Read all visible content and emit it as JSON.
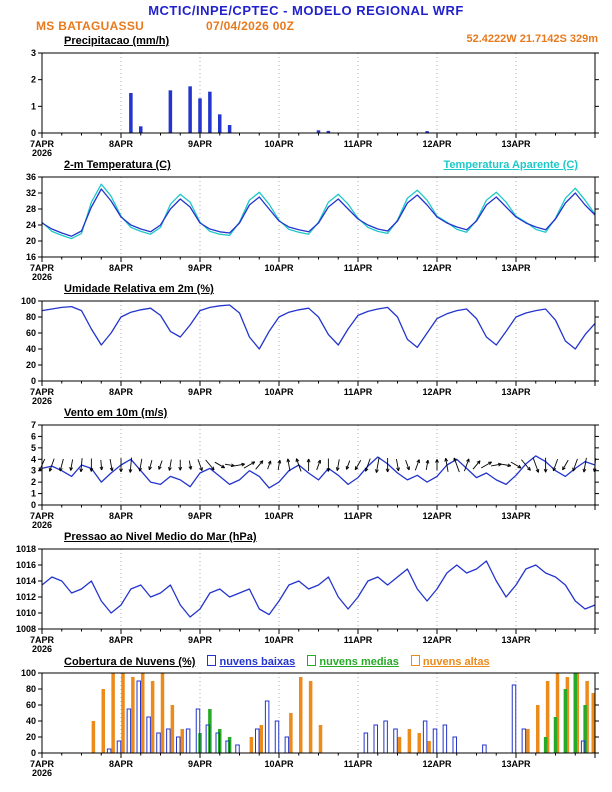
{
  "header": {
    "title": "MCTIC/INPE/CPTEC - MODELO REGIONAL WRF",
    "station": "MS BATAGUASSU",
    "run": "07/04/2026 00Z",
    "coords": "52.4222W 21.7142S 329m"
  },
  "colors": {
    "title_blue": "#2222cc",
    "accent_orange": "#e87a1e",
    "blue": "#2335cc",
    "cyan": "#1fc8c8",
    "green": "#27ab27",
    "orange": "#ec8a1c",
    "black": "#000000"
  },
  "x_axis": {
    "hours_start": 0,
    "hours_end": 168,
    "step_hours": 3,
    "day_ticks": [
      0,
      24,
      48,
      72,
      96,
      120,
      144
    ],
    "day_labels": [
      "7APR",
      "8APR",
      "9APR",
      "10APR",
      "11APR",
      "12APR",
      "13APR"
    ],
    "year_label": "2026",
    "minor_tick_hours": 6
  },
  "chart_data": [
    {
      "type": "bar",
      "title": "Precipitacao (mm/h)",
      "ylim": [
        0,
        3
      ],
      "yticks": [
        0,
        1,
        2,
        3
      ],
      "series": [
        {
          "name": "precipitacao",
          "color": "blue",
          "values": [
            0,
            0,
            0,
            0,
            0,
            0,
            0,
            0,
            0,
            1.5,
            0.25,
            0,
            0,
            1.6,
            0,
            1.75,
            1.3,
            1.55,
            0.7,
            0.3,
            0,
            0,
            0,
            0,
            0,
            0,
            0,
            0,
            0.1,
            0.08,
            0,
            0,
            0,
            0,
            0,
            0,
            0,
            0,
            0,
            0.07,
            0,
            0,
            0,
            0,
            0,
            0,
            0,
            0,
            0,
            0,
            0,
            0,
            0,
            0,
            0,
            0,
            0
          ]
        }
      ]
    },
    {
      "type": "line",
      "title": "2-m Temperatura (C)",
      "title2": "Temperatura Aparente (C)",
      "ylim": [
        16,
        36
      ],
      "yticks": [
        16,
        20,
        24,
        28,
        32,
        36
      ],
      "series": [
        {
          "name": "temperatura-aparente",
          "color": "cyan",
          "values": [
            24.7,
            22.4,
            21.4,
            20.6,
            21.9,
            29.7,
            34.2,
            31.2,
            26.2,
            23.4,
            22.4,
            21.7,
            23.4,
            29.2,
            31.7,
            29.7,
            24.7,
            22.4,
            21.7,
            21.4,
            24.7,
            30.2,
            32.2,
            29.2,
            25.2,
            22.9,
            22.2,
            21.7,
            24.7,
            29.7,
            31.7,
            29.2,
            25.7,
            23.4,
            22.4,
            21.9,
            25.2,
            30.7,
            32.7,
            30.2,
            26.2,
            24.7,
            22.9,
            22.2,
            25.2,
            30.2,
            32.2,
            29.7,
            26.2,
            24.7,
            22.9,
            22.2,
            25.7,
            30.7,
            33.2,
            30.2,
            26.7
          ]
        },
        {
          "name": "temperatura-2m",
          "color": "blue",
          "values": [
            24.5,
            23.0,
            22.0,
            21.2,
            22.5,
            28.5,
            33.0,
            30.0,
            26.0,
            24.0,
            23.0,
            22.3,
            24.0,
            28.0,
            30.5,
            28.5,
            24.5,
            23.0,
            22.3,
            22.0,
            24.5,
            29.0,
            31.0,
            28.0,
            25.0,
            23.5,
            22.8,
            22.3,
            24.5,
            28.5,
            30.5,
            28.0,
            25.5,
            24.0,
            23.0,
            22.5,
            25.0,
            29.5,
            31.5,
            29.0,
            26.0,
            24.5,
            23.5,
            22.8,
            25.0,
            29.0,
            31.0,
            28.5,
            26.0,
            24.5,
            23.5,
            22.8,
            25.5,
            29.5,
            32.0,
            29.0,
            26.5
          ]
        }
      ]
    },
    {
      "type": "line",
      "title": "Umidade Relativa em 2m (%)",
      "ylim": [
        0,
        100
      ],
      "yticks": [
        0,
        20,
        40,
        60,
        80,
        100
      ],
      "series": [
        {
          "name": "umidade-relativa",
          "color": "blue",
          "values": [
            88,
            90,
            92,
            93,
            88,
            65,
            45,
            60,
            80,
            86,
            89,
            91,
            82,
            62,
            55,
            70,
            88,
            92,
            94,
            95,
            85,
            55,
            40,
            62,
            80,
            86,
            89,
            91,
            80,
            58,
            45,
            65,
            82,
            87,
            90,
            92,
            80,
            52,
            42,
            60,
            78,
            84,
            88,
            90,
            78,
            55,
            45,
            62,
            80,
            85,
            88,
            90,
            76,
            50,
            40,
            58,
            72
          ]
        }
      ]
    },
    {
      "type": "wind",
      "title": "Vento em 10m (m/s)",
      "ylim": [
        0,
        7
      ],
      "yticks": [
        0,
        1,
        2,
        3,
        4,
        5,
        6,
        7
      ],
      "arrow_level": 3.5,
      "directions": [
        205,
        200,
        195,
        190,
        185,
        180,
        175,
        170,
        180,
        185,
        190,
        195,
        200,
        190,
        180,
        170,
        160,
        140,
        120,
        100,
        80,
        60,
        40,
        20,
        10,
        350,
        340,
        0,
        20,
        180,
        190,
        200,
        210,
        200,
        190,
        180,
        170,
        160,
        20,
        10,
        0,
        350,
        340,
        20,
        40,
        60,
        80,
        100,
        120,
        140,
        160,
        180,
        200,
        210,
        200,
        190,
        185
      ],
      "series": [
        {
          "name": "velocidade-vento",
          "color": "blue",
          "values": [
            3.2,
            3.4,
            3.0,
            2.5,
            3.5,
            3.2,
            2.0,
            2.8,
            3.5,
            4.0,
            3.0,
            2.0,
            1.8,
            2.5,
            2.2,
            1.6,
            2.8,
            3.2,
            2.5,
            1.8,
            2.2,
            3.0,
            2.5,
            1.5,
            2.0,
            3.0,
            3.5,
            2.8,
            2.2,
            3.2,
            2.6,
            1.8,
            2.4,
            3.4,
            4.2,
            3.6,
            2.8,
            2.2,
            2.6,
            2.0,
            2.5,
            3.5,
            4.0,
            3.2,
            2.4,
            2.8,
            2.2,
            1.8,
            2.6,
            3.6,
            4.3,
            3.8,
            3.0,
            2.5,
            3.2,
            3.8,
            3.5
          ]
        }
      ]
    },
    {
      "type": "line",
      "title": "Pressao ao Nivel Medio do Mar (hPa)",
      "ylim": [
        1008,
        1018
      ],
      "yticks": [
        1008,
        1010,
        1012,
        1014,
        1016,
        1018
      ],
      "series": [
        {
          "name": "pressao-nivel-mar",
          "color": "blue",
          "values": [
            1013.5,
            1014.5,
            1014.0,
            1012.5,
            1013.0,
            1014.0,
            1011.5,
            1010.0,
            1011.0,
            1013.0,
            1013.5,
            1012.0,
            1012.5,
            1013.5,
            1011.0,
            1009.5,
            1010.5,
            1012.5,
            1013.0,
            1012.0,
            1012.5,
            1013.0,
            1010.5,
            1009.8,
            1011.5,
            1013.5,
            1014.0,
            1013.0,
            1013.5,
            1014.5,
            1012.0,
            1010.5,
            1012.0,
            1014.0,
            1014.5,
            1013.5,
            1014.5,
            1015.5,
            1013.0,
            1011.5,
            1013.0,
            1015.0,
            1016.0,
            1015.0,
            1015.5,
            1016.5,
            1014.0,
            1012.0,
            1013.5,
            1015.5,
            1016.0,
            1015.0,
            1014.5,
            1013.5,
            1011.5,
            1010.5,
            1011.0
          ]
        }
      ]
    },
    {
      "type": "clouds",
      "title": "Cobertura de Nuvens (%)",
      "ylim": [
        0,
        100
      ],
      "yticks": [
        0,
        20,
        40,
        60,
        80,
        100
      ],
      "legend": [
        {
          "label": "nuvens baixas",
          "color": "blue"
        },
        {
          "label": "nuvens medias",
          "color": "green"
        },
        {
          "label": "nuvens altas",
          "color": "orange"
        }
      ],
      "series": [
        {
          "name": "nuvens-altas",
          "color": "orange",
          "style": "solid",
          "offset": 2,
          "values": [
            0,
            0,
            0,
            0,
            0,
            40,
            80,
            100,
            100,
            95,
            100,
            90,
            100,
            60,
            30,
            0,
            0,
            0,
            0,
            0,
            0,
            20,
            35,
            0,
            0,
            50,
            95,
            90,
            35,
            0,
            0,
            0,
            0,
            0,
            0,
            0,
            20,
            30,
            25,
            15,
            0,
            0,
            0,
            0,
            0,
            0,
            0,
            0,
            0,
            30,
            60,
            90,
            100,
            95,
            100,
            90,
            75
          ]
        },
        {
          "name": "nuvens-medias",
          "color": "green",
          "style": "solid",
          "offset": 0,
          "values": [
            0,
            0,
            0,
            0,
            0,
            0,
            0,
            0,
            0,
            0,
            0,
            0,
            0,
            0,
            0,
            0,
            25,
            55,
            30,
            20,
            0,
            0,
            0,
            0,
            0,
            0,
            0,
            0,
            0,
            0,
            0,
            0,
            0,
            0,
            0,
            0,
            0,
            0,
            0,
            0,
            0,
            0,
            0,
            0,
            0,
            0,
            0,
            0,
            0,
            0,
            0,
            20,
            45,
            80,
            100,
            60,
            0
          ]
        },
        {
          "name": "nuvens-baixas",
          "color": "blue",
          "style": "outline",
          "offset": -2,
          "values": [
            0,
            0,
            0,
            0,
            0,
            0,
            0,
            5,
            15,
            55,
            90,
            45,
            25,
            30,
            20,
            30,
            55,
            35,
            25,
            15,
            10,
            0,
            30,
            65,
            40,
            20,
            0,
            0,
            0,
            0,
            0,
            0,
            0,
            25,
            35,
            40,
            30,
            0,
            0,
            40,
            30,
            35,
            20,
            0,
            0,
            10,
            0,
            0,
            85,
            30,
            0,
            0,
            0,
            0,
            0,
            15,
            0
          ]
        }
      ]
    }
  ]
}
